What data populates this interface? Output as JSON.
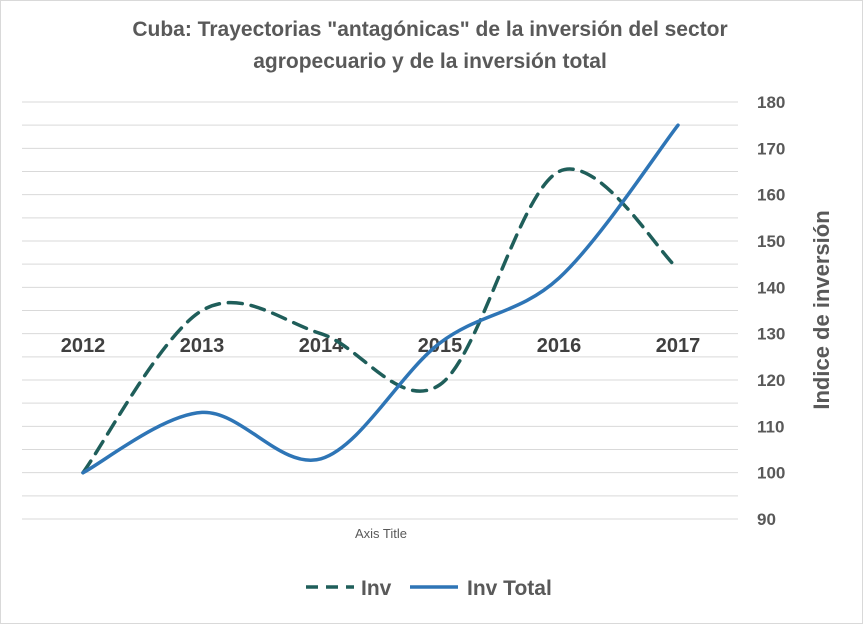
{
  "chart_data": {
    "type": "line",
    "title_line1": "Cuba: Trayectorias \"antagónicas\" de la inversión del sector",
    "title_line2": "agropecuario y de la inversión total",
    "xlabel": "Axis Title",
    "ylabel": "Indice de inversión",
    "categories": [
      "2012",
      "2013",
      "2014",
      "2015",
      "2016",
      "2017"
    ],
    "ylim": [
      90,
      180
    ],
    "ytick_step": 10,
    "y_axis_side": "right",
    "grid": true,
    "smooth": true,
    "legend_position": "bottom",
    "series": [
      {
        "name": "Inv",
        "values": [
          100,
          135,
          130,
          119,
          165,
          144
        ],
        "color": "#1f5e5a",
        "dash": "dashed"
      },
      {
        "name": "Inv Total",
        "values": [
          100,
          113,
          103,
          128,
          142,
          175
        ],
        "color": "#2e75b6",
        "dash": "solid"
      }
    ]
  }
}
